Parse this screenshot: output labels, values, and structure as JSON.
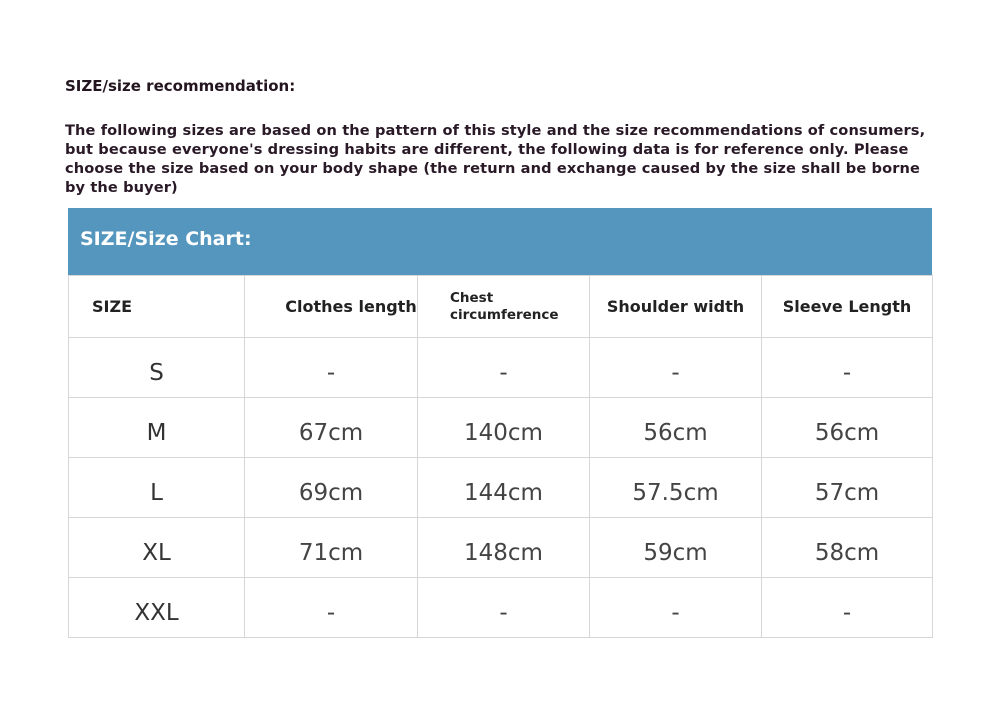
{
  "heading": "SIZE/size recommendation:",
  "description": "The following sizes are based on the pattern of this style and the size recommendations of consumers, but because everyone's dressing habits are different, the following data is for reference only. Please choose the size based on your body shape (the return and exchange caused by the size shall be borne by the buyer)",
  "chart_title": "SIZE/Size Chart:",
  "header_color": "#5596be",
  "table": {
    "columns": [
      "SIZE",
      "Clothes length",
      "Chest circumference",
      "Shoulder width",
      "Sleeve Length"
    ],
    "rows": [
      [
        "S",
        "-",
        "-",
        "-",
        "-"
      ],
      [
        "M",
        "67cm",
        "140cm",
        "56cm",
        "56cm"
      ],
      [
        "L",
        "69cm",
        "144cm",
        "57.5cm",
        "57cm"
      ],
      [
        "XL",
        "71cm",
        "148cm",
        "59cm",
        "58cm"
      ],
      [
        "XXL",
        "-",
        "-",
        "-",
        "-"
      ]
    ]
  }
}
